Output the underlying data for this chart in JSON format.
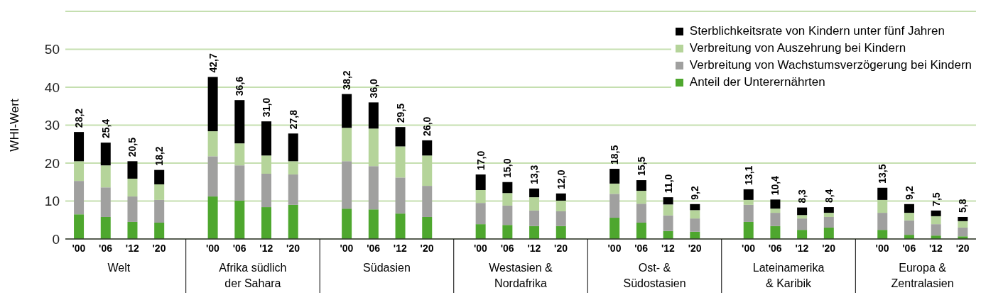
{
  "chart_data": {
    "type": "bar",
    "stacked": true,
    "ylabel": "WHI-Wert",
    "categories": [
      "'00",
      "'06",
      "'12",
      "'20",
      null,
      "'00",
      "'06",
      "'12",
      "'20",
      null,
      "'00",
      "'06",
      "'12",
      "'20",
      null,
      "'00",
      "'06",
      "'12",
      "'20",
      null,
      "'00",
      "'06",
      "'12",
      "'20",
      null,
      "'00",
      "'06",
      "'12",
      "'20",
      null,
      "'00",
      "'06",
      "'12",
      "'20"
    ],
    "series": [
      {
        "name": "Anteil der Unterernährten",
        "color": "#4ea72e",
        "values": [
          6.5,
          5.8,
          4.5,
          4.3,
          null,
          11.2,
          10.1,
          8.4,
          9.0,
          null,
          8.0,
          7.8,
          6.7,
          5.8,
          null,
          3.9,
          3.7,
          3.4,
          3.4,
          null,
          5.6,
          4.3,
          2.1,
          1.9,
          null,
          4.5,
          3.4,
          2.4,
          3.0,
          null,
          2.4,
          1.1,
          0.9,
          0.7
        ]
      },
      {
        "name": "Verbreitung von Wachstumsverzögerung bei Kindern",
        "color": "#a0a09f",
        "values": [
          8.8,
          7.8,
          6.7,
          6.0,
          null,
          10.6,
          9.3,
          8.8,
          8.0,
          null,
          12.5,
          11.4,
          9.5,
          8.2,
          null,
          5.6,
          5.1,
          4.1,
          3.9,
          null,
          6.3,
          5.0,
          4.1,
          3.5,
          null,
          4.5,
          3.5,
          3.0,
          2.8,
          null,
          4.5,
          3.8,
          3.0,
          2.3
        ]
      },
      {
        "name": "Verbreitung von Auszehrung bei Kindern",
        "color": "#b5d49a",
        "values": [
          5.2,
          5.8,
          4.7,
          4.1,
          null,
          6.6,
          5.8,
          4.8,
          3.5,
          null,
          8.8,
          9.9,
          8.2,
          8.0,
          null,
          3.4,
          3.3,
          3.5,
          2.8,
          null,
          2.7,
          3.4,
          2.9,
          2.2,
          null,
          1.3,
          1.1,
          0.9,
          1.1,
          null,
          3.4,
          2.0,
          2.1,
          1.7
        ]
      },
      {
        "name": "Sterblichkeitsrate von Kindern unter fünf Jahren",
        "color": "#000000",
        "values": [
          7.7,
          6.0,
          4.6,
          3.8,
          null,
          14.3,
          11.4,
          9.0,
          7.3,
          null,
          8.9,
          6.9,
          5.1,
          4.0,
          null,
          4.1,
          2.9,
          2.3,
          1.9,
          null,
          3.9,
          2.8,
          1.9,
          1.6,
          null,
          2.8,
          2.4,
          2.0,
          1.5,
          null,
          3.2,
          2.3,
          1.5,
          1.1
        ]
      }
    ],
    "totals": [
      "28,2",
      "25,4",
      "20,5",
      "18,2",
      null,
      "42,7",
      "36,6",
      "31,0",
      "27,8",
      null,
      "38,2",
      "36,0",
      "29,5",
      "26,0",
      null,
      "17,0",
      "15,0",
      "13,3",
      "12,0",
      null,
      "18,5",
      "15,5",
      "11,0",
      "9,2",
      null,
      "13,1",
      "10,4",
      "8,3",
      "8,4",
      null,
      "13,5",
      "9,2",
      "7,5",
      "5,8"
    ],
    "annotations": [
      "Welt",
      "Afrika südlich\nder Sahara",
      "Südasien",
      "Westasien &\nNordafrika",
      "Ost- &\nSüdostasien",
      "Lateinamerika\n& Karibik",
      "Europa &\nZentralasien"
    ],
    "ylim": [
      0,
      60
    ],
    "yticks": [
      0,
      10,
      20,
      30,
      40,
      50,
      {
        "value": 60,
        "label": null
      }
    ],
    "grid": "y",
    "legend": "top right"
  }
}
